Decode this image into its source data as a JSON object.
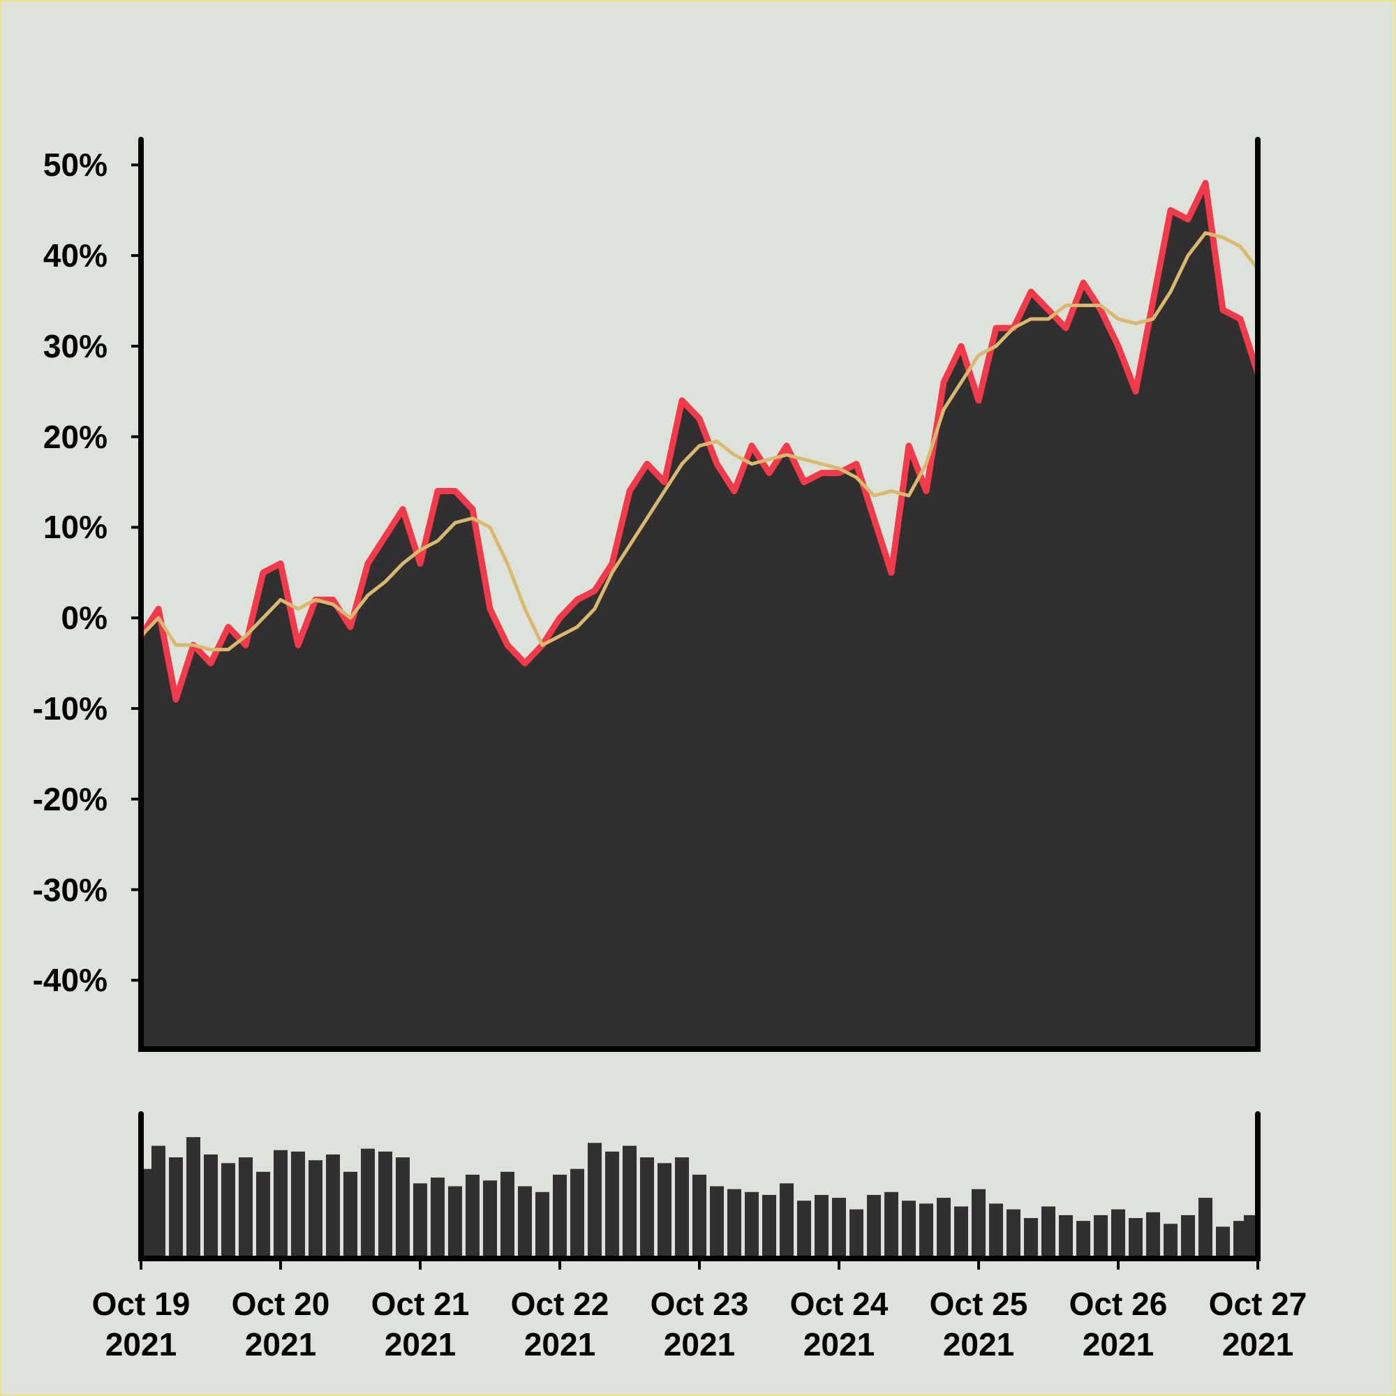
{
  "chart_data": [
    {
      "type": "area",
      "x": [
        0,
        0.125,
        0.25,
        0.375,
        0.5,
        0.625,
        0.75,
        0.875,
        1,
        1.125,
        1.25,
        1.375,
        1.5,
        1.625,
        1.75,
        1.875,
        2,
        2.125,
        2.25,
        2.375,
        2.5,
        2.625,
        2.75,
        2.875,
        3,
        3.125,
        3.25,
        3.375,
        3.5,
        3.625,
        3.75,
        3.875,
        4,
        4.125,
        4.25,
        4.375,
        4.5,
        4.625,
        4.75,
        4.875,
        5,
        5.125,
        5.25,
        5.375,
        5.5,
        5.625,
        5.75,
        5.875,
        6,
        6.125,
        6.25,
        6.375,
        6.5,
        6.625,
        6.75,
        6.875,
        7,
        7.125,
        7.25,
        7.375,
        7.5,
        7.625,
        7.75,
        7.875,
        8
      ],
      "series": [
        {
          "color": "#f23a4b",
          "fill": "#312f30",
          "values": [
            -2,
            1,
            -9,
            -3,
            -5,
            -1,
            -3,
            5,
            6,
            -3,
            2,
            2,
            -1,
            6,
            9,
            12,
            6,
            14,
            14,
            12,
            1,
            -3,
            -5,
            -3,
            0,
            2,
            3,
            6,
            14,
            17,
            15,
            24,
            22,
            17,
            14,
            19,
            16,
            19,
            15,
            16,
            16,
            17,
            11,
            5,
            19,
            14,
            26,
            30,
            24,
            32,
            32,
            36,
            34,
            32,
            37,
            34,
            30,
            25,
            35,
            45,
            44,
            48,
            34,
            33,
            27
          ]
        },
        {
          "color": "#d8b96e",
          "values": [
            -2,
            0,
            -3,
            -3,
            -3.5,
            -3.5,
            -2,
            0,
            2,
            1,
            2,
            1.5,
            0,
            2.5,
            4,
            6,
            7.5,
            8.5,
            10.5,
            11,
            10,
            6,
            1,
            -3,
            -2,
            -1,
            1,
            5,
            8,
            11,
            14,
            17,
            19,
            19.5,
            18,
            17,
            17.5,
            18,
            17.5,
            17,
            16.5,
            15.5,
            13.5,
            14,
            13.5,
            17,
            23,
            26,
            29,
            30,
            32,
            33,
            33,
            34.5,
            34.5,
            34.5,
            33,
            32.5,
            33,
            36,
            40,
            42.5,
            42,
            41,
            38.5
          ]
        }
      ],
      "xlim": [
        0,
        8
      ],
      "ylim": [
        -47.6,
        52.8
      ],
      "yticks": [
        {
          "value": 50,
          "label": "50%"
        },
        {
          "value": 40,
          "label": "40%"
        },
        {
          "value": 30,
          "label": "30%"
        },
        {
          "value": 20,
          "label": "20%"
        },
        {
          "value": 10,
          "label": "10%"
        },
        {
          "value": 0,
          "label": "0%"
        },
        {
          "value": -10,
          "label": "-10%"
        },
        {
          "value": -20,
          "label": "-20%"
        },
        {
          "value": -30,
          "label": "-30%"
        },
        {
          "value": -40,
          "label": "-40%"
        }
      ]
    },
    {
      "type": "bar",
      "x": [
        0,
        0.125,
        0.25,
        0.375,
        0.5,
        0.625,
        0.75,
        0.875,
        1,
        1.125,
        1.25,
        1.375,
        1.5,
        1.625,
        1.75,
        1.875,
        2,
        2.125,
        2.25,
        2.375,
        2.5,
        2.625,
        2.75,
        2.875,
        3,
        3.125,
        3.25,
        3.375,
        3.5,
        3.625,
        3.75,
        3.875,
        4,
        4.125,
        4.25,
        4.375,
        4.5,
        4.625,
        4.75,
        4.875,
        5,
        5.125,
        5.25,
        5.375,
        5.5,
        5.625,
        5.75,
        5.875,
        6,
        6.125,
        6.25,
        6.375,
        6.5,
        6.625,
        6.75,
        6.875,
        7,
        7.125,
        7.25,
        7.375,
        7.5,
        7.625,
        7.75,
        7.875,
        8
      ],
      "values": [
        62,
        78,
        70,
        84,
        72,
        66,
        70,
        60,
        75,
        74,
        68,
        72,
        60,
        76,
        74,
        70,
        52,
        56,
        50,
        58,
        54,
        60,
        50,
        46,
        58,
        62,
        80,
        74,
        78,
        70,
        66,
        70,
        58,
        50,
        48,
        46,
        44,
        52,
        40,
        44,
        42,
        34,
        44,
        46,
        40,
        38,
        42,
        36,
        48,
        38,
        34,
        28,
        36,
        30,
        26,
        30,
        34,
        28,
        32,
        24,
        30,
        42,
        22,
        26,
        30
      ],
      "color": "#312f30",
      "xlim": [
        0,
        8
      ],
      "ylim": [
        0,
        100
      ],
      "xticks": [
        {
          "value": 0,
          "label": "Oct 19\n2021"
        },
        {
          "value": 1,
          "label": "Oct 20\n2021"
        },
        {
          "value": 2,
          "label": "Oct 21\n2021"
        },
        {
          "value": 3,
          "label": "Oct 22\n2021"
        },
        {
          "value": 4,
          "label": "Oct 23\n2021"
        },
        {
          "value": 5,
          "label": "Oct 24\n2021"
        },
        {
          "value": 6,
          "label": "Oct 25\n2021"
        },
        {
          "value": 7,
          "label": "Oct 26\n2021"
        },
        {
          "value": 8,
          "label": "Oct 27\n2021"
        }
      ]
    }
  ]
}
